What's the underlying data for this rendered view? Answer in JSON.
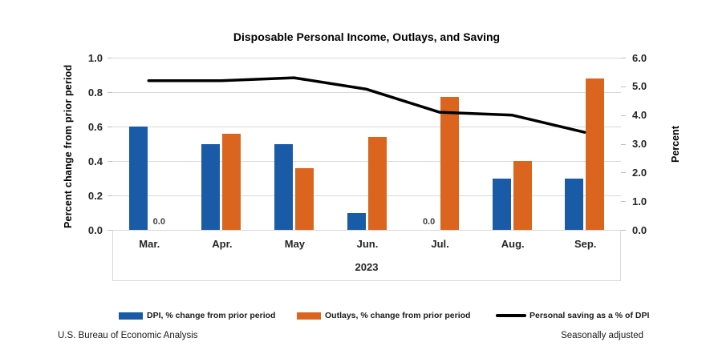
{
  "title": "Disposable Personal Income, Outlays, and Saving",
  "left_axis": {
    "title": "Percent change from prior period",
    "tick_labels": [
      "1.0",
      "0.8",
      "0.6",
      "0.4",
      "0.2",
      "0.0"
    ],
    "tick_values": [
      1.0,
      0.8,
      0.6,
      0.4,
      0.2,
      0.0
    ],
    "min": 0.0,
    "max": 1.0
  },
  "right_axis": {
    "title": "Percent",
    "tick_labels": [
      "6.0",
      "5.0",
      "4.0",
      "3.0",
      "2.0",
      "1.0",
      "0.0"
    ],
    "tick_values": [
      6.0,
      5.0,
      4.0,
      3.0,
      2.0,
      1.0,
      0.0
    ],
    "min": 0.0,
    "max": 6.0
  },
  "x_axis": {
    "categories": [
      "Mar.",
      "Apr.",
      "May",
      "Jun.",
      "Jul.",
      "Aug.",
      "Sep."
    ],
    "year": "2023"
  },
  "legend": [
    {
      "label": "DPI, % change from prior period",
      "swatch": "rect",
      "color": "#1a5ba8"
    },
    {
      "label": "Outlays, % change from prior period",
      "swatch": "rect",
      "color": "#db651e"
    },
    {
      "label": "Personal saving as a % of DPI",
      "swatch": "line",
      "color": "#000000"
    }
  ],
  "footer": {
    "left": "U.S. Bureau of Economic Analysis",
    "right": "Seasonally adjusted"
  },
  "colors": {
    "dpi_bar": "#1a5ba8",
    "outlays_bar": "#db651e",
    "saving_line": "#000000",
    "gridline": "#d9d9d9",
    "axis_tick": "#bfbfbf",
    "category_box_border": "#d9d9d9"
  },
  "zero_value_label": "0.0",
  "chart_data": {
    "type": "bar",
    "subtype": "grouped bars with secondary-axis line",
    "title": "Disposable Personal Income, Outlays, and Saving",
    "categories": [
      "Mar.",
      "Apr.",
      "May",
      "Jun.",
      "Jul.",
      "Aug.",
      "Sep."
    ],
    "x_group_label": "2023",
    "series": [
      {
        "name": "DPI, % change from prior period",
        "type": "bar",
        "axis": "left",
        "color": "#1a5ba8",
        "values": [
          0.6,
          0.5,
          0.5,
          0.1,
          0.0,
          0.3,
          0.3
        ]
      },
      {
        "name": "Outlays, % change from prior period",
        "type": "bar",
        "axis": "left",
        "color": "#db651e",
        "values": [
          0.0,
          0.56,
          0.36,
          0.54,
          0.77,
          0.4,
          0.88
        ]
      },
      {
        "name": "Personal saving as a % of DPI",
        "type": "line",
        "axis": "right",
        "color": "#000000",
        "values": [
          5.2,
          5.2,
          5.3,
          4.9,
          4.1,
          4.0,
          3.4
        ]
      }
    ],
    "left_ylabel": "Percent change from prior period",
    "right_ylabel": "Percent",
    "left_ylim": [
      0.0,
      1.0
    ],
    "right_ylim": [
      0.0,
      6.0
    ],
    "grid": "horizontal, every 0.2 on left axis",
    "legend_position": "bottom",
    "data_labels": "only zero-value bars are labeled 0.0 (Mar. Outlays, Jul. DPI)"
  }
}
